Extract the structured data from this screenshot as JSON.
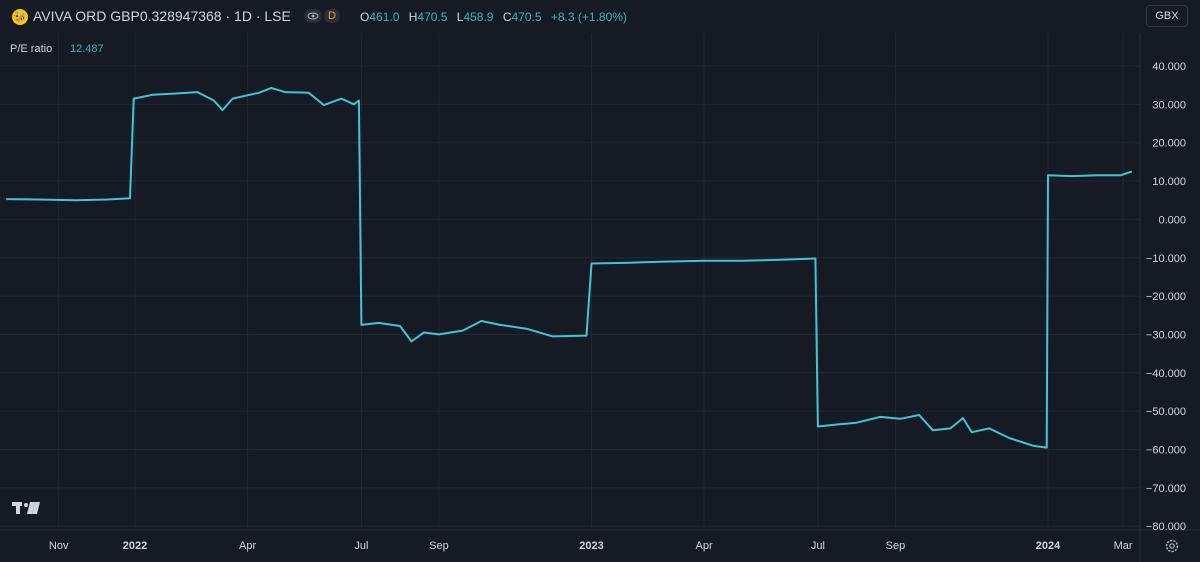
{
  "header": {
    "logo_glyph": "🐝",
    "symbol": "AVIVA ORD GBP0.328947368 · 1D · LSE",
    "eye_icon": "eye-icon",
    "interval_badge": "D",
    "ohlc": [
      {
        "key": "O",
        "value": "461.0"
      },
      {
        "key": "H",
        "value": "470.5"
      },
      {
        "key": "L",
        "value": "458.9"
      },
      {
        "key": "C",
        "value": "470.5"
      }
    ],
    "change": "+8.3 (+1.80%)",
    "currency_button": "GBX"
  },
  "indicator": {
    "label": "P/E ratio",
    "value": "12.487"
  },
  "colors": {
    "background": "#161a25",
    "line": "#3fc6d1",
    "accent": "#3fb5b0",
    "grid": "#232733"
  },
  "chart_data": {
    "type": "line",
    "y_ticks": [
      "40.000",
      "30.000",
      "20.000",
      "10.000",
      "0.000",
      "−10.000",
      "−20.000",
      "−30.000",
      "−40.000",
      "−50.000",
      "−60.000",
      "−70.000",
      "−80.000"
    ],
    "ylim": [
      -80,
      40
    ],
    "x_ticks": [
      {
        "label": "Nov",
        "bold": false,
        "date": "2021-11-01"
      },
      {
        "label": "2022",
        "bold": true,
        "date": "2022-01-01"
      },
      {
        "label": "Apr",
        "bold": false,
        "date": "2022-04-01"
      },
      {
        "label": "Jul",
        "bold": false,
        "date": "2022-07-01"
      },
      {
        "label": "Sep",
        "bold": false,
        "date": "2022-09-01"
      },
      {
        "label": "2023",
        "bold": true,
        "date": "2023-01-01"
      },
      {
        "label": "Apr",
        "bold": false,
        "date": "2023-04-01"
      },
      {
        "label": "Jul",
        "bold": false,
        "date": "2023-07-01"
      },
      {
        "label": "Sep",
        "bold": false,
        "date": "2023-09-01"
      },
      {
        "label": "2024",
        "bold": true,
        "date": "2024-01-01"
      },
      {
        "label": "Mar",
        "bold": false,
        "date": "2024-03-01"
      }
    ],
    "series": [
      {
        "points": [
          [
            "2021-09-20",
            5.3
          ],
          [
            "2021-10-15",
            5.2
          ],
          [
            "2021-11-15",
            5.0
          ],
          [
            "2021-12-10",
            5.2
          ],
          [
            "2021-12-28",
            5.5
          ],
          [
            "2021-12-31",
            31.5
          ],
          [
            "2022-01-15",
            32.5
          ],
          [
            "2022-02-01",
            32.8
          ],
          [
            "2022-02-20",
            33.2
          ],
          [
            "2022-03-05",
            31.0
          ],
          [
            "2022-03-12",
            28.5
          ],
          [
            "2022-03-20",
            31.5
          ],
          [
            "2022-04-10",
            33.0
          ],
          [
            "2022-04-20",
            34.3
          ],
          [
            "2022-05-01",
            33.2
          ],
          [
            "2022-05-20",
            33.0
          ],
          [
            "2022-06-01",
            29.8
          ],
          [
            "2022-06-15",
            31.5
          ],
          [
            "2022-06-25",
            30.0
          ],
          [
            "2022-06-29",
            31.0
          ],
          [
            "2022-07-01",
            -27.5
          ],
          [
            "2022-07-15",
            -27.0
          ],
          [
            "2022-08-01",
            -27.8
          ],
          [
            "2022-08-10",
            -31.8
          ],
          [
            "2022-08-20",
            -29.5
          ],
          [
            "2022-09-01",
            -30.0
          ],
          [
            "2022-09-20",
            -29.0
          ],
          [
            "2022-10-05",
            -26.5
          ],
          [
            "2022-10-20",
            -27.5
          ],
          [
            "2022-11-10",
            -28.5
          ],
          [
            "2022-12-01",
            -30.5
          ],
          [
            "2022-12-28",
            -30.3
          ],
          [
            "2023-01-01",
            -11.5
          ],
          [
            "2023-02-01",
            -11.3
          ],
          [
            "2023-03-01",
            -11.0
          ],
          [
            "2023-04-01",
            -10.8
          ],
          [
            "2023-05-01",
            -10.8
          ],
          [
            "2023-06-01",
            -10.5
          ],
          [
            "2023-06-29",
            -10.2
          ],
          [
            "2023-07-01",
            -54.0
          ],
          [
            "2023-07-15",
            -53.5
          ],
          [
            "2023-08-01",
            -53.0
          ],
          [
            "2023-08-20",
            -51.5
          ],
          [
            "2023-09-05",
            -52.0
          ],
          [
            "2023-09-20",
            -51.0
          ],
          [
            "2023-10-01",
            -55.0
          ],
          [
            "2023-10-15",
            -54.5
          ],
          [
            "2023-10-25",
            -51.8
          ],
          [
            "2023-11-01",
            -55.5
          ],
          [
            "2023-11-15",
            -54.5
          ],
          [
            "2023-12-01",
            -57.0
          ],
          [
            "2023-12-20",
            -59.0
          ],
          [
            "2023-12-31",
            -59.5
          ],
          [
            "2024-01-01",
            11.5
          ],
          [
            "2024-01-20",
            11.3
          ],
          [
            "2024-02-10",
            11.5
          ],
          [
            "2024-02-28",
            11.5
          ],
          [
            "2024-03-08",
            12.5
          ]
        ]
      }
    ]
  }
}
